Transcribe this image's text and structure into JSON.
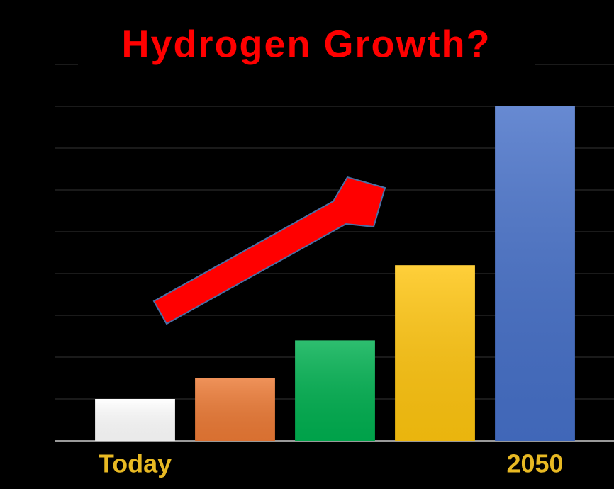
{
  "chart_data": {
    "type": "bar",
    "title": "Hydrogen Growth?",
    "categories": [
      "Today",
      null,
      null,
      null,
      "2050"
    ],
    "values": [
      1.0,
      1.5,
      2.4,
      4.2,
      8.0
    ],
    "colors": [
      "#ffffff",
      "#ec7a35",
      "#00b050",
      "#ffc50f",
      "#4670c8"
    ],
    "ylim": [
      0,
      9
    ],
    "yticks": [
      0,
      1,
      2,
      3,
      4,
      5,
      6,
      7,
      8,
      9
    ],
    "grid": true
  }
}
